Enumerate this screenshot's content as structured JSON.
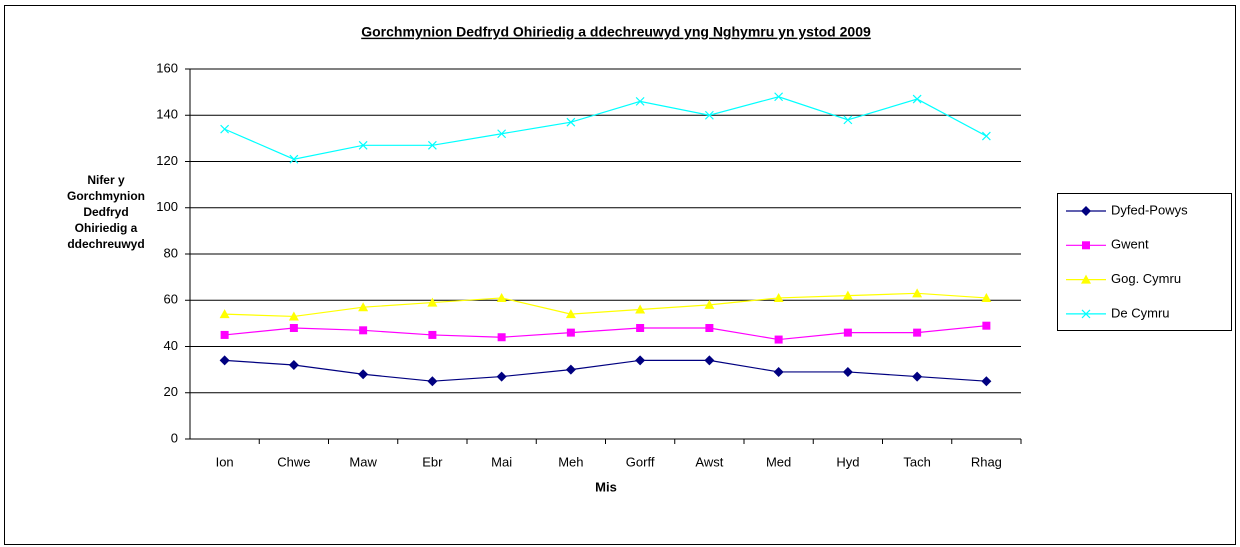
{
  "chart_data": {
    "type": "line",
    "title": "Gorchmynion Dedfryd Ohiriedig a ddechreuwyd yng Nghymru yn ystod  2009",
    "x_label": "Mis",
    "y_label": "Nifer y Gorchmynion Dedfryd Ohiriedig a ddechreuwyd",
    "categories": [
      "Ion",
      "Chwe",
      "Maw",
      "Ebr",
      "Mai",
      "Meh",
      "Gorff",
      "Awst",
      "Med",
      "Hyd",
      "Tach",
      "Rhag"
    ],
    "series": [
      {
        "name": "Dyfed-Powys",
        "color": "#000080",
        "marker": "diamond",
        "values": [
          34,
          32,
          28,
          25,
          27,
          30,
          34,
          34,
          29,
          29,
          27,
          25
        ]
      },
      {
        "name": "Gwent",
        "color": "#ff00ff",
        "marker": "square",
        "values": [
          45,
          48,
          47,
          45,
          44,
          46,
          48,
          48,
          43,
          46,
          46,
          49
        ]
      },
      {
        "name": "Gog. Cymru",
        "color": "#ffff00",
        "marker": "triangle",
        "values": [
          54,
          53,
          57,
          59,
          61,
          54,
          56,
          58,
          61,
          62,
          63,
          61
        ]
      },
      {
        "name": "De Cymru",
        "color": "#00ffff",
        "marker": "x",
        "values": [
          134,
          121,
          127,
          127,
          132,
          137,
          146,
          140,
          148,
          138,
          147,
          131
        ]
      }
    ],
    "ylim": [
      0,
      160
    ],
    "yticks": [
      0,
      20,
      40,
      60,
      80,
      100,
      120,
      140,
      160
    ],
    "grid": true,
    "legend": "right"
  }
}
